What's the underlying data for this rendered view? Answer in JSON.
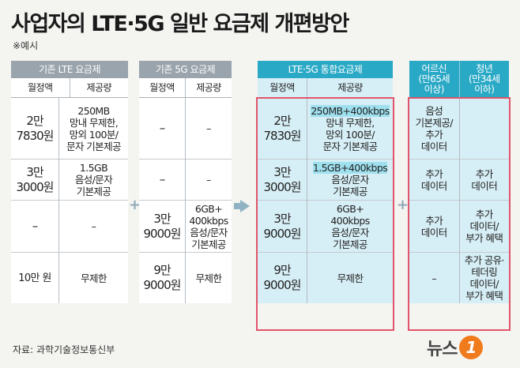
{
  "title": "사업자의 LTE·5G 일반 요금제 개편방안",
  "subtitle": "※예시",
  "source": "자료: 과학기술정보통신부",
  "logo": {
    "text": "뉴스",
    "badge": "1"
  },
  "subheaders": {
    "monthly": "월정액",
    "data": "제공량"
  },
  "panels": {
    "lte": {
      "title": "기존 LTE 요금제",
      "fees": [
        "2만\n7830원",
        "3만\n3000원",
        "–",
        "10만 원"
      ],
      "data": [
        "250MB\n망내 무제한,\n망외 100분/\n문자 기본제공",
        "1.5GB\n음성/문자\n기본제공",
        "–",
        "무제한"
      ]
    },
    "fiveg": {
      "title": "기존 5G 요금제",
      "fees": [
        "–",
        "–",
        "3만\n9000원",
        "9만\n9000원"
      ],
      "data": [
        "–",
        "–",
        "6GB+\n400kbps\n음성/문자\n기본제공",
        "무제한"
      ]
    },
    "merged": {
      "title": "LTE·5G 통합요금제",
      "fees": [
        "2만\n7830원",
        "3만\n3000원",
        "3만\n9000원",
        "9만\n9000원"
      ],
      "data1_hl": "250MB+400kbps",
      "data1_rest": "망내 무제한,\n망외 100분/\n문자 기본제공",
      "data2_hl": "1.5GB+400kbps",
      "data2_rest": "음성/문자\n기본제공",
      "data3": "6GB+\n400kbps\n음성/문자\n기본제공",
      "data4": "무제한"
    },
    "extra": {
      "senior_title": "어르신",
      "senior_sub": "(만65세\n이상)",
      "youth_title": "청년",
      "youth_sub": "(만34세\n이하)",
      "senior": [
        "음성\n기본제공/\n추가\n데이터",
        "추가\n데이터",
        "추가\n데이터",
        "–"
      ],
      "youth": [
        "",
        "추가\n데이터",
        "추가\n데이터/\n부가 혜택",
        "추가 공유·\n테더링\n데이터/\n부가 혜택"
      ]
    }
  },
  "colors": {
    "gray_header": "#9aa4ac",
    "blue_header": "#2aa9c6",
    "highlight_border": "#e2546a",
    "blue_fill": "#d6eef5"
  }
}
